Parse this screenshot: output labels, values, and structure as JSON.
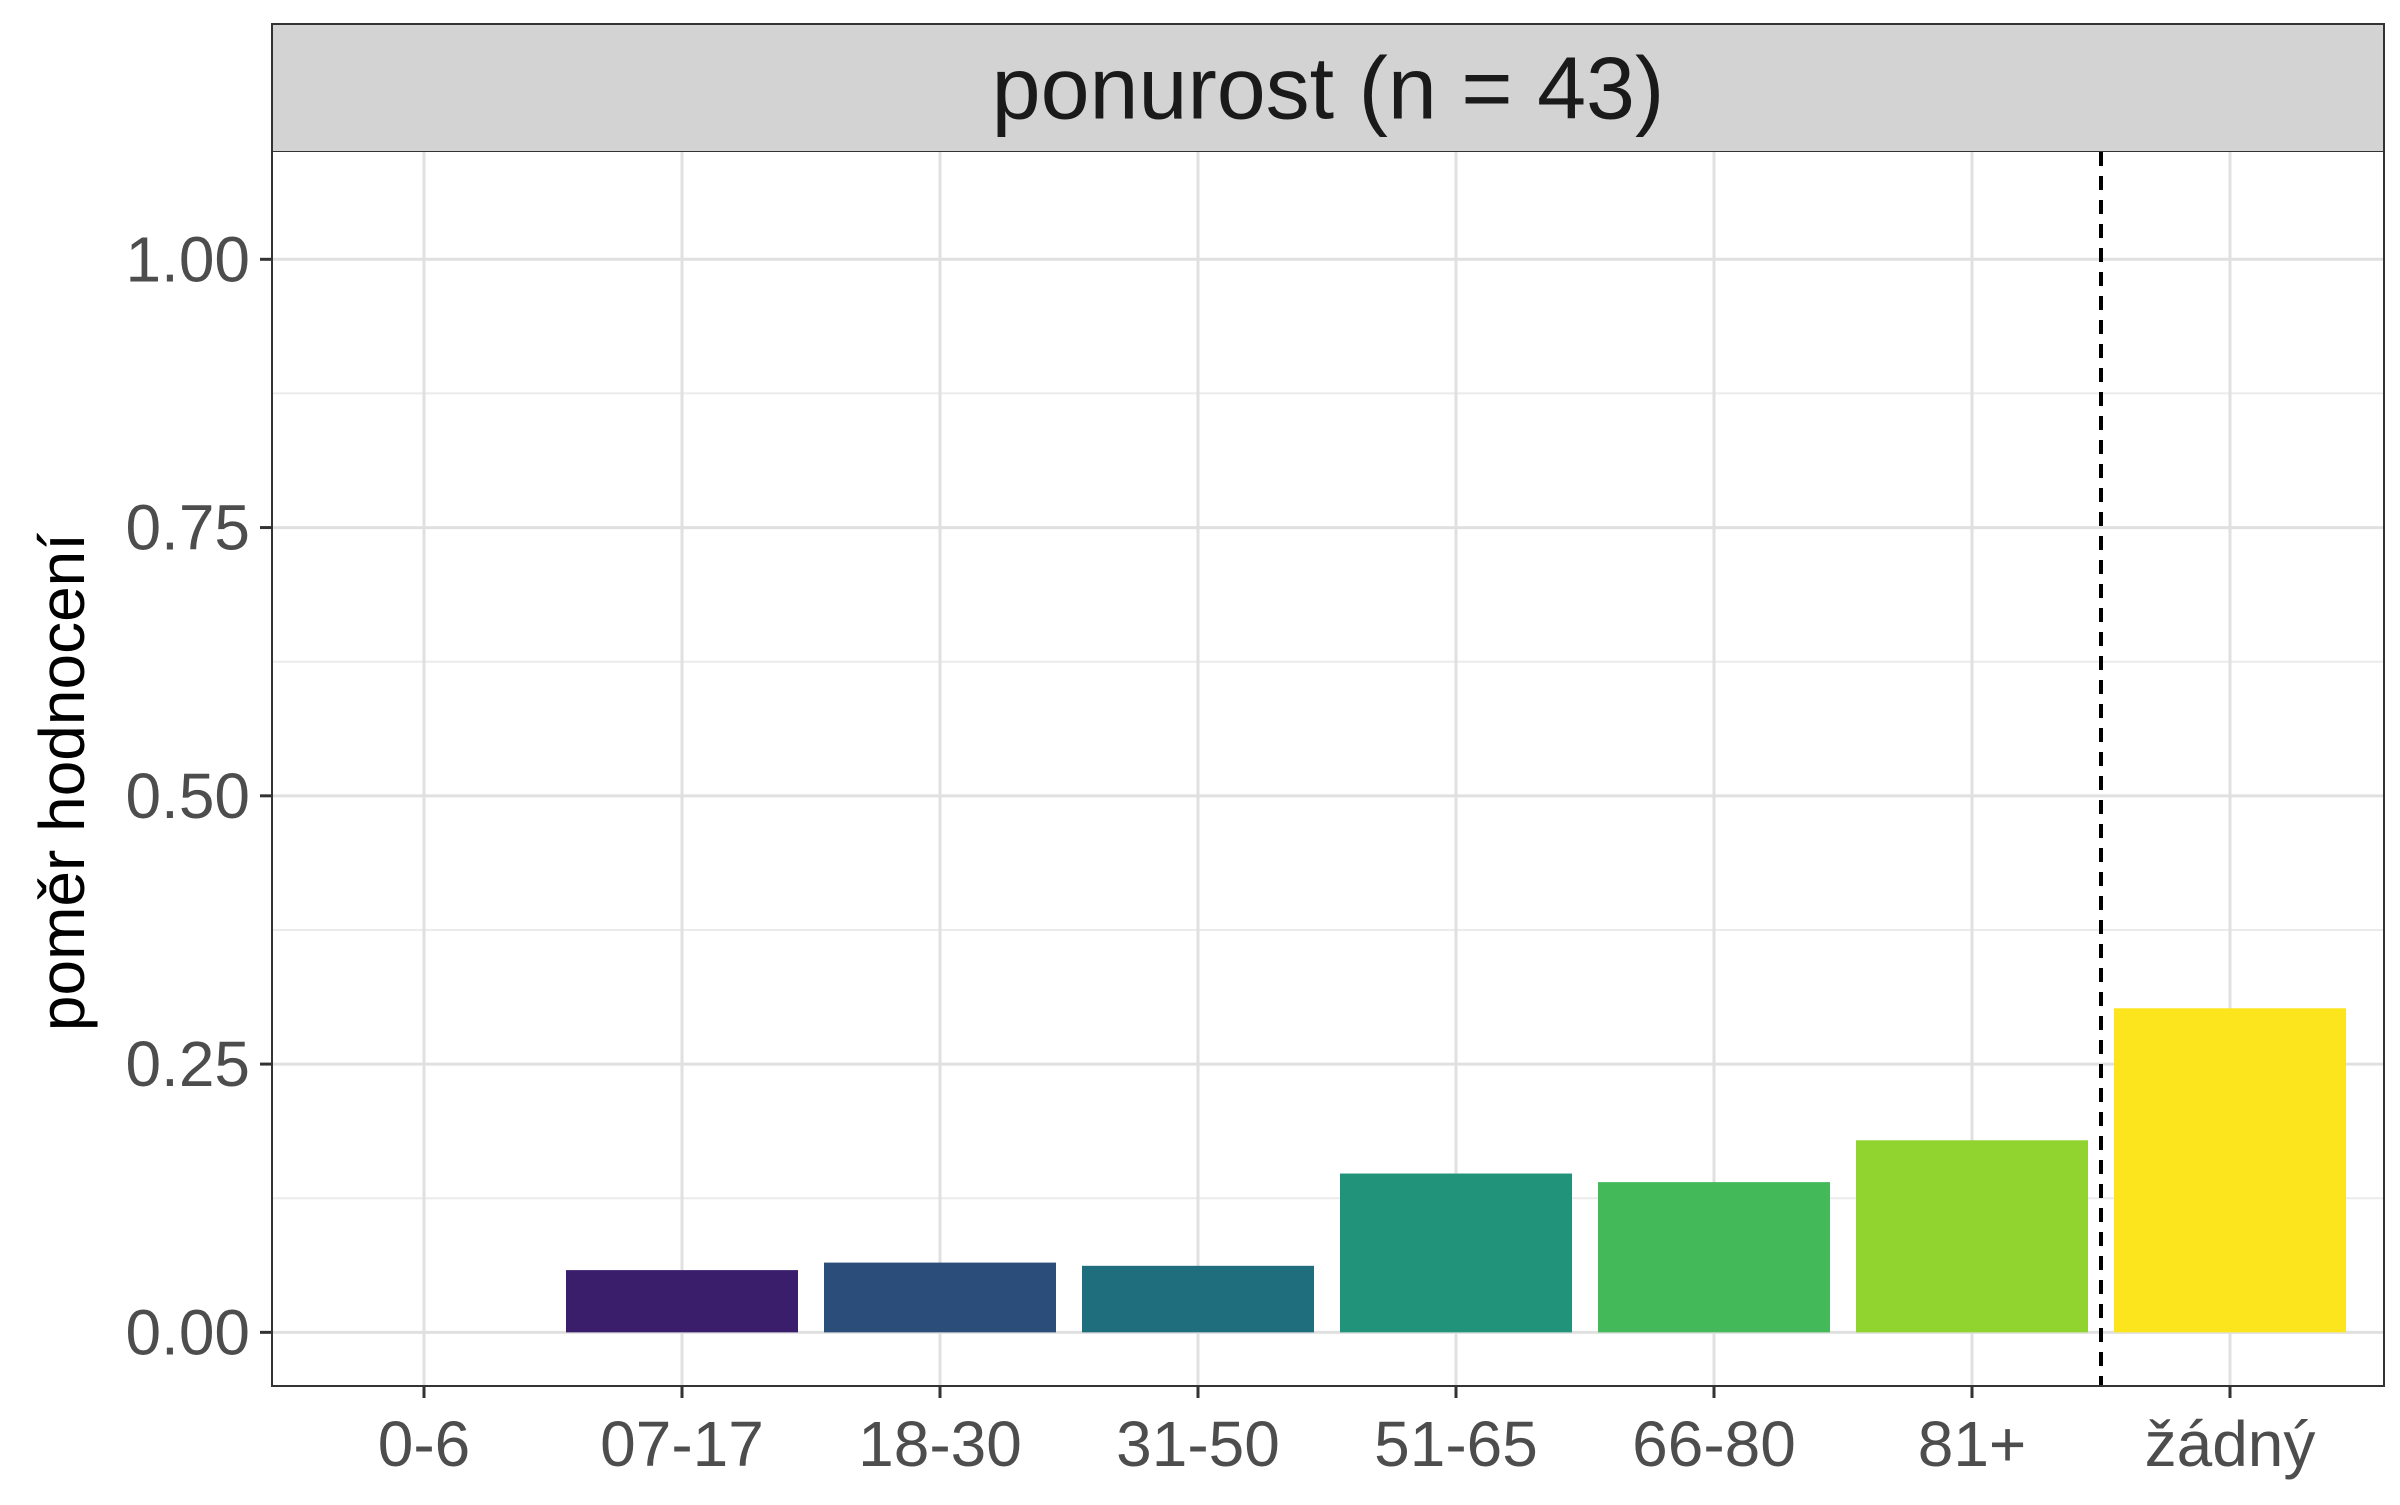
{
  "chart_data": {
    "type": "bar",
    "title": "ponurost (n = 43)",
    "xlabel": "",
    "ylabel": "poměr hodnocení",
    "categories": [
      "0-6",
      "07-17",
      "18-30",
      "31-50",
      "51-65",
      "66-80",
      "81+",
      "žádný"
    ],
    "values": [
      0.0,
      0.058,
      0.065,
      0.062,
      0.148,
      0.14,
      0.179,
      0.302
    ],
    "colors": [
      "#440154",
      "#3b1e6b",
      "#2b4d7a",
      "#1f6e7d",
      "#21937a",
      "#44b95a",
      "#91d42f",
      "#fde51e"
    ],
    "ylim": [
      -0.05,
      1.1
    ],
    "yticks": [
      0.0,
      0.25,
      0.5,
      0.75,
      1.0
    ],
    "ytick_labels": [
      "0.00",
      "0.25",
      "0.50",
      "0.75",
      "1.00"
    ],
    "grid": true,
    "reference_line": {
      "after_category": "81+",
      "style": "dashed",
      "color": "#000000"
    },
    "strip_color": "#d3d3d3"
  }
}
